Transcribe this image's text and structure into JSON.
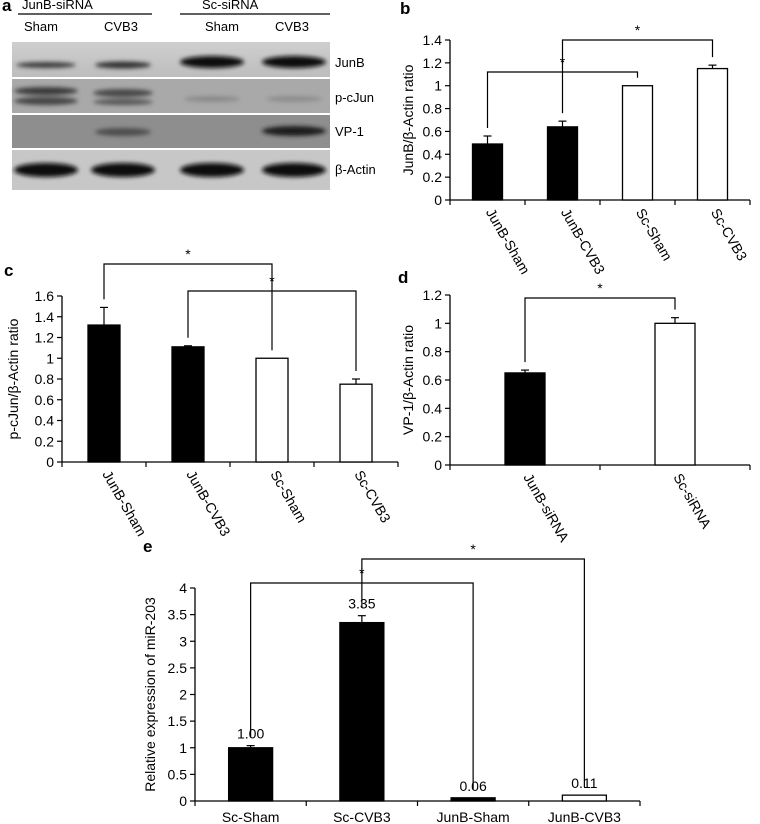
{
  "panels": {
    "a": "a",
    "b": "b",
    "c": "c",
    "d": "d",
    "e": "e"
  },
  "blot": {
    "groups": [
      "JunB-siRNA",
      "Sc-siRNA"
    ],
    "lanes": [
      "Sham",
      "CVB3",
      "Sham",
      "CVB3"
    ],
    "rows": [
      "JunB",
      "p-cJun",
      "VP-1",
      "β-Actin"
    ]
  },
  "chart_data": [
    {
      "id": "b",
      "type": "bar",
      "categories": [
        "JunB-Sham",
        "JunB-CVB3",
        "Sc-Sham",
        "Sc-CVB3"
      ],
      "values": [
        0.49,
        0.64,
        1.0,
        1.15
      ],
      "errors": [
        0.07,
        0.05,
        0.0,
        0.03
      ],
      "fills": [
        "#000000",
        "#000000",
        "#ffffff",
        "#ffffff"
      ],
      "ylabel": "JunB/β-Actin ratio",
      "ylim": [
        0,
        1.4
      ],
      "yticks": [
        0,
        0.2,
        0.4,
        0.6,
        0.8,
        1,
        1.2,
        1.4
      ],
      "ytick_labels": [
        "0",
        "0.2",
        "0.4",
        "0.6",
        "0.8",
        "1",
        "1.2",
        "1.4"
      ],
      "x_rotated": true,
      "significance": [
        {
          "from": 0,
          "to": 2,
          "label": "*"
        },
        {
          "from": 1,
          "to": 3,
          "label": "*"
        }
      ]
    },
    {
      "id": "c",
      "type": "bar",
      "categories": [
        "JunB-Sham",
        "JunB-CVB3",
        "Sc-Sham",
        "Sc-CVB3"
      ],
      "values": [
        1.32,
        1.11,
        1.0,
        0.75
      ],
      "errors": [
        0.17,
        0.01,
        0.0,
        0.05
      ],
      "fills": [
        "#000000",
        "#000000",
        "#ffffff",
        "#ffffff"
      ],
      "ylabel": "p-cJun/β-Actin ratio",
      "ylim": [
        0,
        1.6
      ],
      "yticks": [
        0,
        0.2,
        0.4,
        0.6,
        0.8,
        1,
        1.2,
        1.4,
        1.6
      ],
      "ytick_labels": [
        "0",
        "0.2",
        "0.4",
        "0.6",
        "0.8",
        "1",
        "1.2",
        "1.4",
        "1.6"
      ],
      "x_rotated": true,
      "significance": [
        {
          "from": 0,
          "to": 2,
          "label": "*"
        },
        {
          "from": 1,
          "to": 3,
          "label": "*"
        }
      ]
    },
    {
      "id": "d",
      "type": "bar",
      "categories": [
        "JunB-siRNA",
        "Sc-siRNA"
      ],
      "values": [
        0.65,
        1.0
      ],
      "errors": [
        0.02,
        0.04
      ],
      "fills": [
        "#000000",
        "#ffffff"
      ],
      "ylabel": "VP-1/β-Actin ratio",
      "ylim": [
        0,
        1.2
      ],
      "yticks": [
        0,
        0.2,
        0.4,
        0.6,
        0.8,
        1,
        1.2
      ],
      "ytick_labels": [
        "0",
        "0.2",
        "0.4",
        "0.6",
        "0.8",
        "1",
        "1.2"
      ],
      "x_rotated": true,
      "significance": [
        {
          "from": 0,
          "to": 1,
          "label": "*"
        }
      ]
    },
    {
      "id": "e",
      "type": "bar",
      "categories": [
        "Sc-Sham",
        "Sc-CVB3",
        "JunB-Sham",
        "JunB-CVB3"
      ],
      "values": [
        1.0,
        3.35,
        0.06,
        0.11
      ],
      "errors": [
        0.04,
        0.13,
        0.0,
        0.0
      ],
      "data_labels": [
        "1.00",
        "3.35",
        "0.06",
        "0.11"
      ],
      "fills": [
        "#000000",
        "#000000",
        "#000000",
        "#ffffff"
      ],
      "ylabel": "Relative expression of miR-203",
      "ylim": [
        0,
        4
      ],
      "yticks": [
        0,
        0.5,
        1,
        1.5,
        2,
        2.5,
        3,
        3.5,
        4
      ],
      "ytick_labels": [
        "0",
        "0.5",
        "1",
        "1.5",
        "2",
        "2.5",
        "3",
        "3.5",
        "4"
      ],
      "x_rotated": false,
      "significance": [
        {
          "from": 0,
          "to": 2,
          "label": "*"
        },
        {
          "from": 1,
          "to": 3,
          "label": "*"
        }
      ]
    }
  ]
}
